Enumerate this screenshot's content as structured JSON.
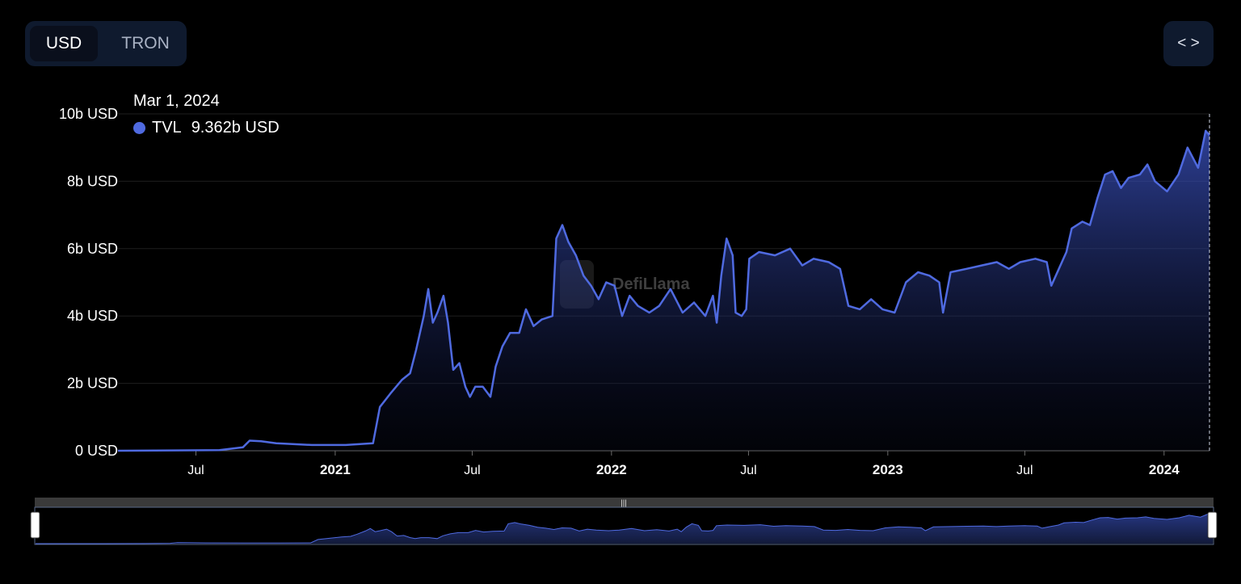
{
  "toolbar": {
    "options": [
      "USD",
      "TRON"
    ],
    "selected": "USD",
    "embed_icon": "code-brackets-icon"
  },
  "watermark": "DefiLlama",
  "tooltip": {
    "date": "Mar 1, 2024",
    "series": "TVL",
    "value": "9.362b USD",
    "color": "#4f6ae0"
  },
  "chart_data": {
    "type": "area",
    "title": "",
    "xlabel": "",
    "ylabel": "",
    "ylim": [
      0,
      10
    ],
    "yunit": "b USD",
    "yticks": [
      {
        "value": 0,
        "label": "0 USD"
      },
      {
        "value": 2,
        "label": "2b USD"
      },
      {
        "value": 4,
        "label": "4b USD"
      },
      {
        "value": 6,
        "label": "6b USD"
      },
      {
        "value": 8,
        "label": "8b USD"
      },
      {
        "value": 10,
        "label": "10b USD"
      }
    ],
    "xlim": [
      "2020-03-20",
      "2024-03-01"
    ],
    "xticks": [
      {
        "date": "2020-07-01",
        "label": "Jul",
        "bold": false
      },
      {
        "date": "2021-01-01",
        "label": "2021",
        "bold": true
      },
      {
        "date": "2021-07-01",
        "label": "Jul",
        "bold": false
      },
      {
        "date": "2022-01-01",
        "label": "2022",
        "bold": true
      },
      {
        "date": "2022-07-01",
        "label": "Jul",
        "bold": false
      },
      {
        "date": "2023-01-01",
        "label": "2023",
        "bold": true
      },
      {
        "date": "2023-07-01",
        "label": "Jul",
        "bold": false
      },
      {
        "date": "2024-01-01",
        "label": "2024",
        "bold": true
      }
    ],
    "grid": true,
    "series": [
      {
        "name": "TVL",
        "color": "#4f6ae0",
        "points": [
          [
            "2020-03-20",
            0.0
          ],
          [
            "2020-06-01",
            0.01
          ],
          [
            "2020-08-01",
            0.02
          ],
          [
            "2020-09-01",
            0.1
          ],
          [
            "2020-09-10",
            0.3
          ],
          [
            "2020-09-25",
            0.28
          ],
          [
            "2020-10-15",
            0.22
          ],
          [
            "2020-12-01",
            0.17
          ],
          [
            "2021-01-15",
            0.17
          ],
          [
            "2021-02-20",
            0.22
          ],
          [
            "2021-03-01",
            1.3
          ],
          [
            "2021-03-15",
            1.7
          ],
          [
            "2021-03-30",
            2.1
          ],
          [
            "2021-04-10",
            2.3
          ],
          [
            "2021-04-18",
            3.0
          ],
          [
            "2021-04-28",
            4.0
          ],
          [
            "2021-05-04",
            4.8
          ],
          [
            "2021-05-10",
            3.8
          ],
          [
            "2021-05-16",
            4.1
          ],
          [
            "2021-05-24",
            4.6
          ],
          [
            "2021-05-30",
            3.8
          ],
          [
            "2021-06-06",
            2.4
          ],
          [
            "2021-06-14",
            2.6
          ],
          [
            "2021-06-22",
            1.9
          ],
          [
            "2021-06-28",
            1.6
          ],
          [
            "2021-07-05",
            1.9
          ],
          [
            "2021-07-15",
            1.9
          ],
          [
            "2021-07-25",
            1.6
          ],
          [
            "2021-08-01",
            2.5
          ],
          [
            "2021-08-10",
            3.1
          ],
          [
            "2021-08-20",
            3.5
          ],
          [
            "2021-09-01",
            3.5
          ],
          [
            "2021-09-10",
            4.2
          ],
          [
            "2021-09-20",
            3.7
          ],
          [
            "2021-10-01",
            3.9
          ],
          [
            "2021-10-15",
            4.0
          ],
          [
            "2021-10-20",
            6.3
          ],
          [
            "2021-10-28",
            6.7
          ],
          [
            "2021-11-05",
            6.2
          ],
          [
            "2021-11-15",
            5.8
          ],
          [
            "2021-11-25",
            5.2
          ],
          [
            "2021-12-05",
            4.9
          ],
          [
            "2021-12-15",
            4.5
          ],
          [
            "2021-12-25",
            5.0
          ],
          [
            "2022-01-05",
            4.9
          ],
          [
            "2022-01-15",
            4.0
          ],
          [
            "2022-01-25",
            4.6
          ],
          [
            "2022-02-05",
            4.3
          ],
          [
            "2022-02-20",
            4.1
          ],
          [
            "2022-03-05",
            4.3
          ],
          [
            "2022-03-20",
            4.8
          ],
          [
            "2022-04-05",
            4.1
          ],
          [
            "2022-04-20",
            4.4
          ],
          [
            "2022-05-05",
            4.0
          ],
          [
            "2022-05-15",
            4.6
          ],
          [
            "2022-05-20",
            3.8
          ],
          [
            "2022-05-26",
            5.2
          ],
          [
            "2022-06-02",
            6.3
          ],
          [
            "2022-06-10",
            5.8
          ],
          [
            "2022-06-14",
            4.1
          ],
          [
            "2022-06-22",
            4.0
          ],
          [
            "2022-06-28",
            4.2
          ],
          [
            "2022-07-02",
            5.7
          ],
          [
            "2022-07-15",
            5.9
          ],
          [
            "2022-08-05",
            5.8
          ],
          [
            "2022-08-25",
            6.0
          ],
          [
            "2022-09-10",
            5.5
          ],
          [
            "2022-09-25",
            5.7
          ],
          [
            "2022-10-15",
            5.6
          ],
          [
            "2022-10-30",
            5.4
          ],
          [
            "2022-11-10",
            4.3
          ],
          [
            "2022-11-25",
            4.2
          ],
          [
            "2022-12-10",
            4.5
          ],
          [
            "2022-12-25",
            4.2
          ],
          [
            "2023-01-10",
            4.1
          ],
          [
            "2023-01-25",
            5.0
          ],
          [
            "2023-02-10",
            5.3
          ],
          [
            "2023-02-25",
            5.2
          ],
          [
            "2023-03-10",
            5.0
          ],
          [
            "2023-03-15",
            4.1
          ],
          [
            "2023-03-25",
            5.3
          ],
          [
            "2023-04-15",
            5.4
          ],
          [
            "2023-05-05",
            5.5
          ],
          [
            "2023-05-25",
            5.6
          ],
          [
            "2023-06-10",
            5.4
          ],
          [
            "2023-06-25",
            5.6
          ],
          [
            "2023-07-15",
            5.7
          ],
          [
            "2023-07-30",
            5.6
          ],
          [
            "2023-08-05",
            4.9
          ],
          [
            "2023-08-15",
            5.4
          ],
          [
            "2023-08-25",
            5.9
          ],
          [
            "2023-09-01",
            6.6
          ],
          [
            "2023-09-15",
            6.8
          ],
          [
            "2023-09-25",
            6.7
          ],
          [
            "2023-10-05",
            7.5
          ],
          [
            "2023-10-15",
            8.2
          ],
          [
            "2023-10-25",
            8.3
          ],
          [
            "2023-11-05",
            7.8
          ],
          [
            "2023-11-15",
            8.1
          ],
          [
            "2023-11-30",
            8.2
          ],
          [
            "2023-12-10",
            8.5
          ],
          [
            "2023-12-20",
            8.0
          ],
          [
            "2024-01-05",
            7.7
          ],
          [
            "2024-01-20",
            8.2
          ],
          [
            "2024-02-01",
            9.0
          ],
          [
            "2024-02-15",
            8.4
          ],
          [
            "2024-02-25",
            9.5
          ],
          [
            "2024-03-01",
            9.362
          ]
        ]
      }
    ]
  }
}
